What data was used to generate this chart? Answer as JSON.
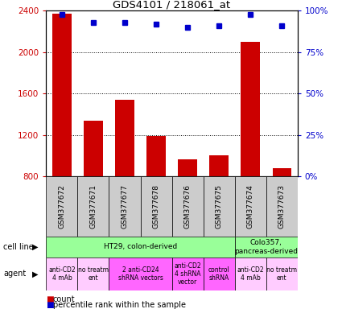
{
  "title": "GDS4101 / 218061_at",
  "samples": [
    "GSM377672",
    "GSM377671",
    "GSM377677",
    "GSM377678",
    "GSM377676",
    "GSM377675",
    "GSM377674",
    "GSM377673"
  ],
  "counts": [
    2370,
    1340,
    1540,
    1190,
    960,
    1000,
    2100,
    880
  ],
  "percentiles": [
    98,
    93,
    93,
    92,
    90,
    91,
    98,
    91
  ],
  "bar_color": "#cc0000",
  "dot_color": "#0000cc",
  "ylim_left": [
    800,
    2400
  ],
  "ylim_right": [
    0,
    100
  ],
  "yticks_left": [
    800,
    1200,
    1600,
    2000,
    2400
  ],
  "yticks_right": [
    0,
    25,
    50,
    75,
    100
  ],
  "cell_line_spans": [
    {
      "start": 0,
      "end": 5,
      "label": "HT29, colon-derived",
      "color": "#99ff99"
    },
    {
      "start": 6,
      "end": 7,
      "label": "Colo357,\npancreas-derived",
      "color": "#99ff99"
    }
  ],
  "agent_spans": [
    {
      "start": 0,
      "end": 0,
      "label": "anti-CD2\n4 mAb",
      "color": "#ffccff"
    },
    {
      "start": 1,
      "end": 1,
      "label": "no treatm\nent",
      "color": "#ffccff"
    },
    {
      "start": 2,
      "end": 3,
      "label": "2 anti-CD24\nshRNA vectors",
      "color": "#ff66ff"
    },
    {
      "start": 4,
      "end": 4,
      "label": "anti-CD2\n4 shRNA\nvector",
      "color": "#ff66ff"
    },
    {
      "start": 5,
      "end": 5,
      "label": "control\nshRNA",
      "color": "#ff66ff"
    },
    {
      "start": 6,
      "end": 6,
      "label": "anti-CD2\n4 mAb",
      "color": "#ffccff"
    },
    {
      "start": 7,
      "end": 7,
      "label": "no treatm\nent",
      "color": "#ffccff"
    }
  ],
  "tick_color_left": "#cc0000",
  "tick_color_right": "#0000cc",
  "sample_box_color": "#cccccc",
  "legend_count_color": "#cc0000",
  "legend_pct_color": "#0000cc"
}
